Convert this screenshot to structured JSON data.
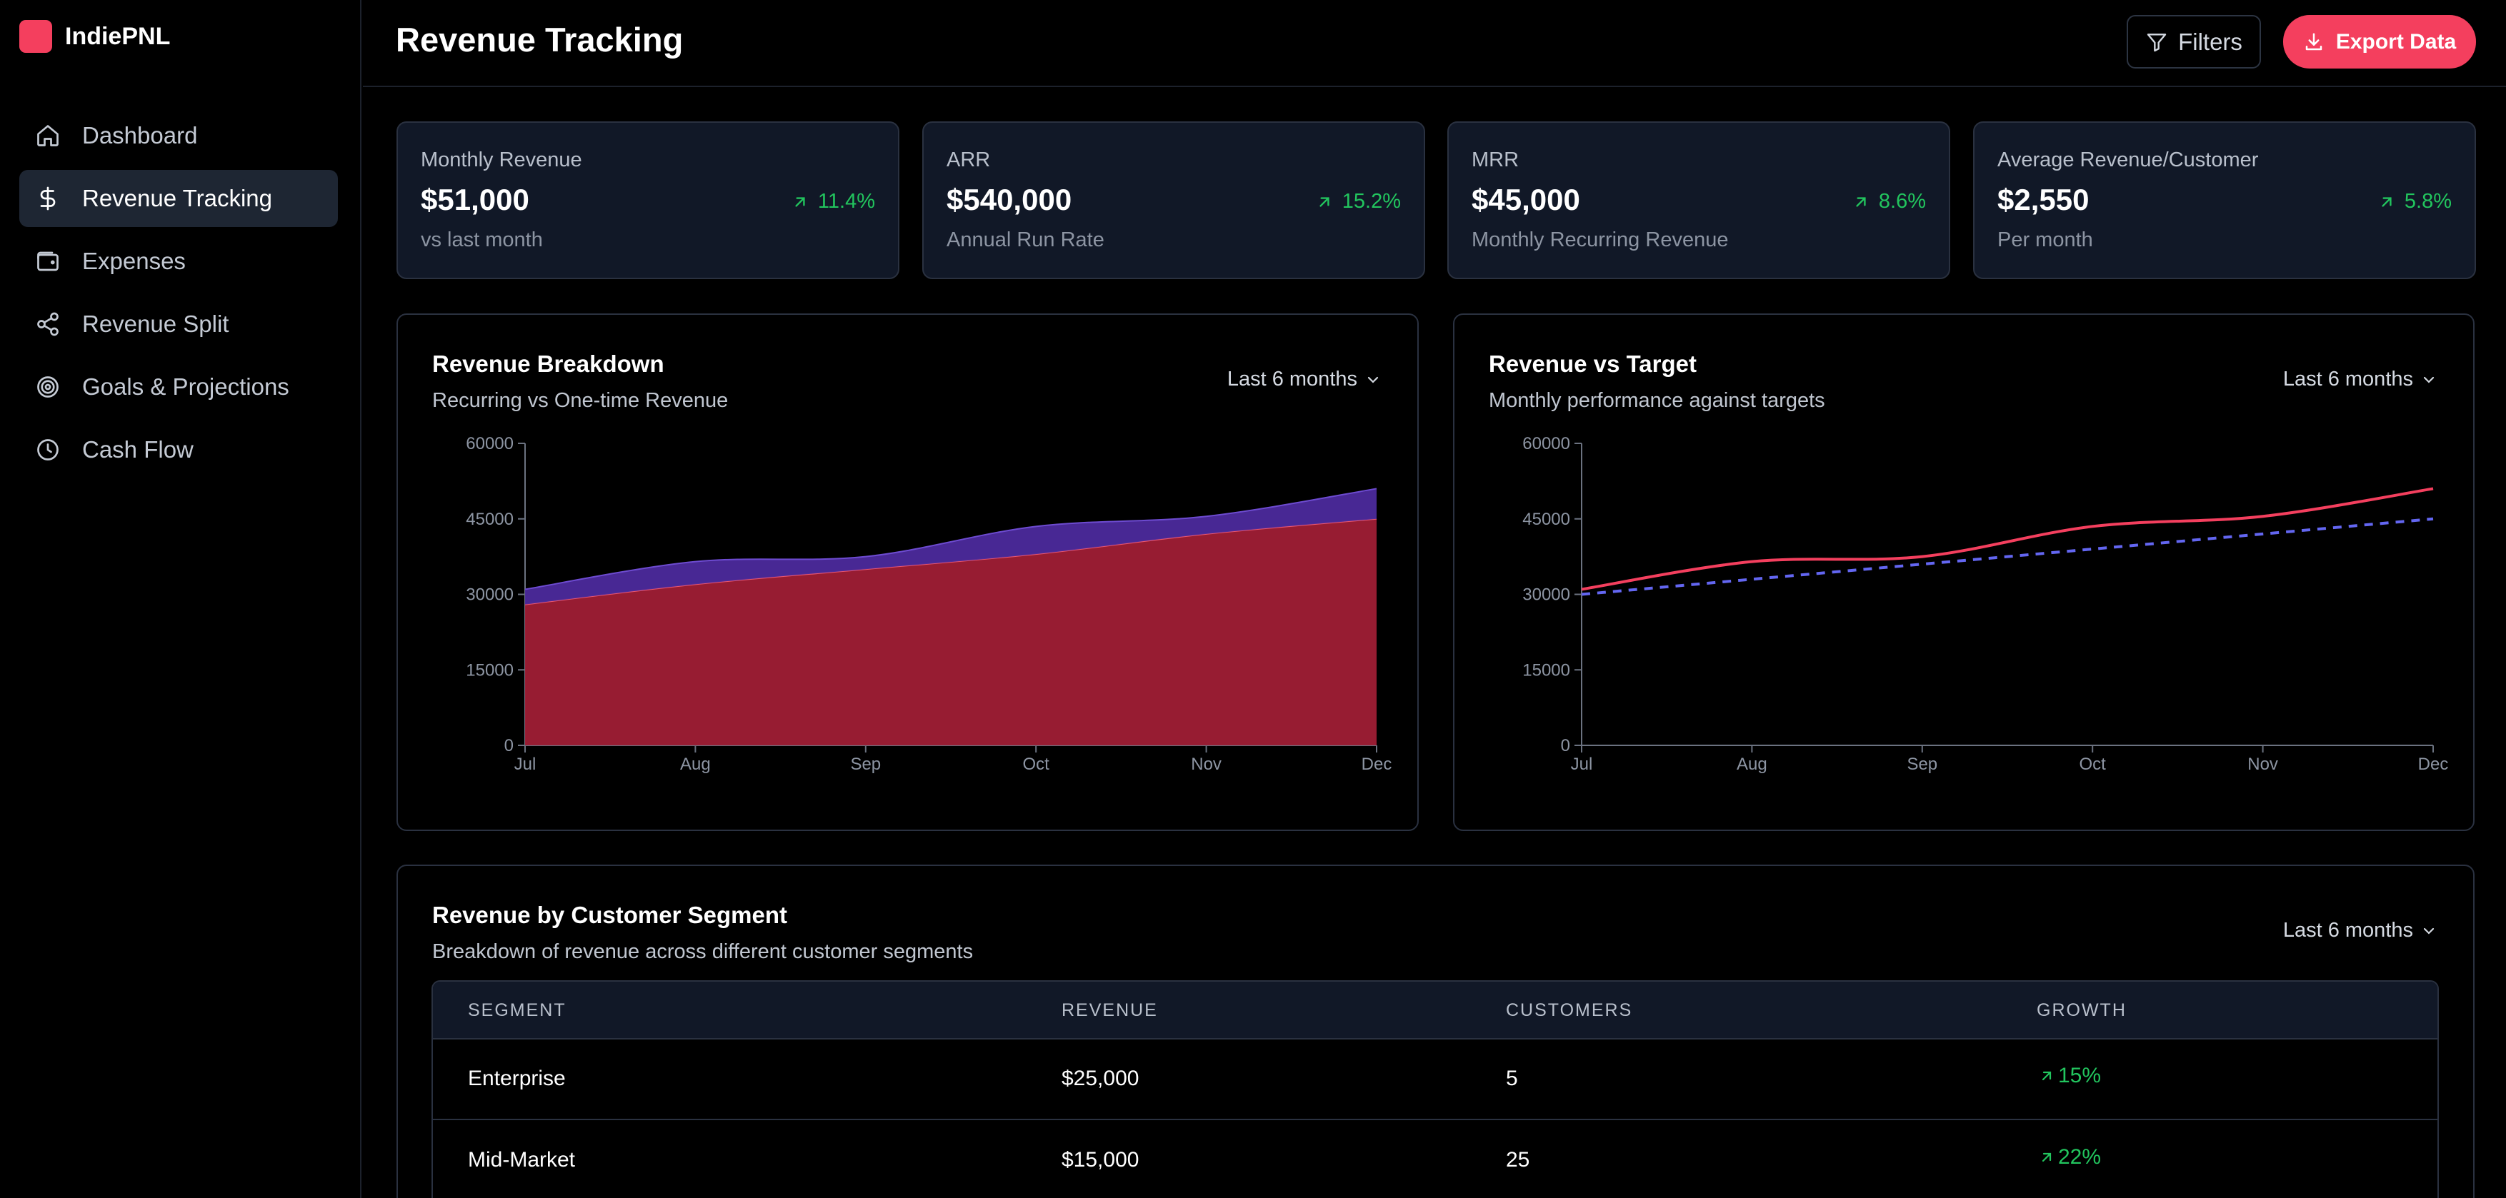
{
  "app": {
    "name": "IndiePNL",
    "brand_color": "#f43f5e"
  },
  "sidebar": {
    "items": [
      {
        "label": "Dashboard",
        "icon": "home-icon",
        "active": false
      },
      {
        "label": "Revenue Tracking",
        "icon": "dollar-icon",
        "active": true
      },
      {
        "label": "Expenses",
        "icon": "wallet-icon",
        "active": false
      },
      {
        "label": "Revenue Split",
        "icon": "share-icon",
        "active": false
      },
      {
        "label": "Goals & Projections",
        "icon": "target-icon",
        "active": false
      },
      {
        "label": "Cash Flow",
        "icon": "clock-icon",
        "active": false
      }
    ]
  },
  "header": {
    "title": "Revenue Tracking",
    "filters_label": "Filters",
    "export_label": "Export Data"
  },
  "kpis": [
    {
      "label": "Monthly Revenue",
      "value": "$51,000",
      "sub": "vs last month",
      "change": "11.4%"
    },
    {
      "label": "ARR",
      "value": "$540,000",
      "sub": "Annual Run Rate",
      "change": "15.2%"
    },
    {
      "label": "MRR",
      "value": "$45,000",
      "sub": "Monthly Recurring Revenue",
      "change": "8.6%"
    },
    {
      "label": "Average Revenue/Customer",
      "value": "$2,550",
      "sub": "Per month",
      "change": "5.8%"
    }
  ],
  "breakdown_card": {
    "title": "Revenue Breakdown",
    "subtitle": "Recurring vs One-time Revenue",
    "range": "Last 6 months"
  },
  "target_card": {
    "title": "Revenue vs Target",
    "subtitle": "Monthly performance against targets",
    "range": "Last 6 months"
  },
  "segment_card": {
    "title": "Revenue by Customer Segment",
    "subtitle": "Breakdown of revenue across different customer segments",
    "range": "Last 6 months",
    "columns": [
      "SEGMENT",
      "REVENUE",
      "CUSTOMERS",
      "GROWTH"
    ],
    "rows": [
      {
        "segment": "Enterprise",
        "revenue": "$25,000",
        "customers": "5",
        "growth": "15%"
      },
      {
        "segment": "Mid-Market",
        "revenue": "$15,000",
        "customers": "25",
        "growth": "22%"
      }
    ]
  },
  "chart_data": [
    {
      "type": "area",
      "categories": [
        "Jul",
        "Aug",
        "Sep",
        "Oct",
        "Nov",
        "Dec"
      ],
      "yticks": [
        "0",
        "15000",
        "30000",
        "45000",
        "60000"
      ],
      "ylim": [
        0,
        60000
      ],
      "stacked": true,
      "series": [
        {
          "values": [
            28000,
            32000,
            35000,
            38000,
            42000,
            45000
          ],
          "color": "#9f1d35"
        },
        {
          "values": [
            3000,
            4500,
            2500,
            5500,
            3500,
            6000
          ],
          "color": "#4c2a9c"
        }
      ],
      "grid": false
    },
    {
      "type": "line",
      "categories": [
        "Jul",
        "Aug",
        "Sep",
        "Oct",
        "Nov",
        "Dec"
      ],
      "yticks": [
        "0",
        "15000",
        "30000",
        "45000",
        "60000"
      ],
      "ylim": [
        0,
        60000
      ],
      "series": [
        {
          "values": [
            31000,
            36500,
            37500,
            43500,
            45500,
            51000
          ],
          "color": "#f43f5e",
          "style": "solid"
        },
        {
          "values": [
            30000,
            33000,
            36000,
            39000,
            42000,
            45000
          ],
          "color": "#6366f1",
          "style": "dashed"
        }
      ],
      "grid": false
    }
  ]
}
